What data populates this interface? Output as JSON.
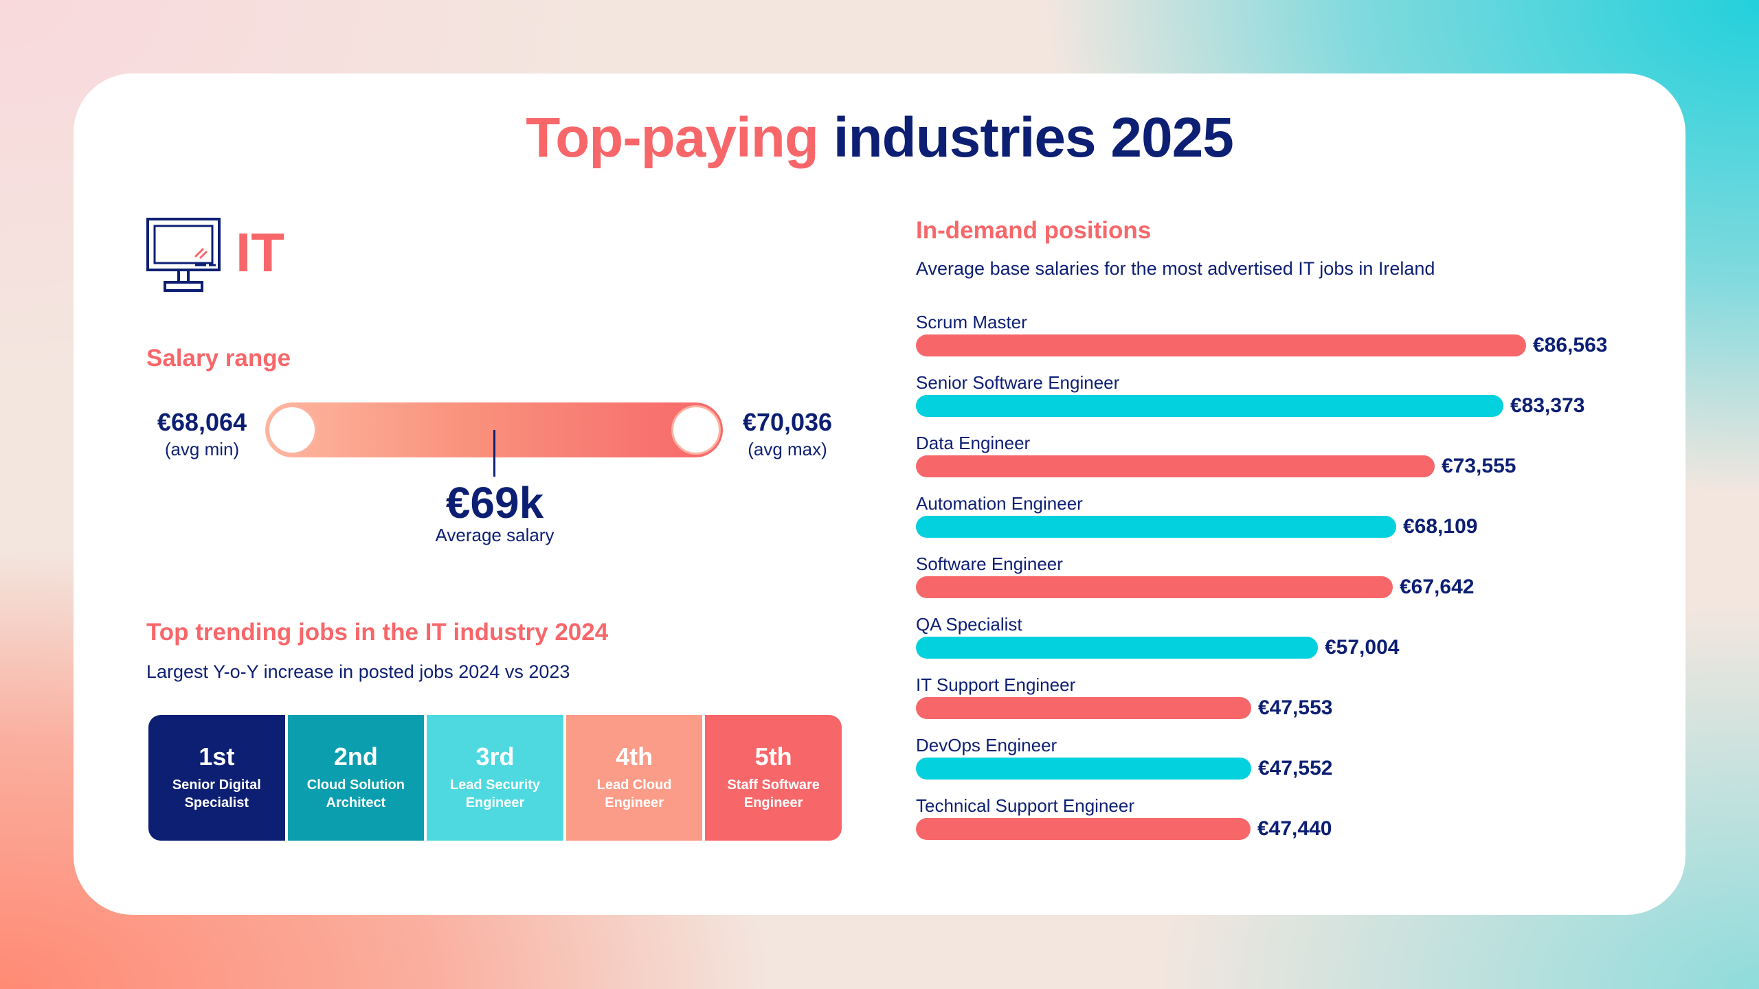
{
  "title": {
    "highlight": "Top-paying",
    "rest": "industries 2025"
  },
  "industry": {
    "name": "IT",
    "icon": "computer-monitor-icon"
  },
  "salary_range": {
    "heading": "Salary range",
    "min_value": "€68,064",
    "min_label": "(avg min)",
    "max_value": "€70,036",
    "max_label": "(avg max)",
    "average_value": "€69k",
    "average_label": "Average salary"
  },
  "trending": {
    "heading": "Top trending jobs in the IT industry 2024",
    "subheading": "Largest Y-o-Y increase in posted jobs 2024 vs 2023",
    "items": [
      {
        "rank": "1st",
        "job": "Senior Digital Specialist",
        "color": "#0d1f73"
      },
      {
        "rank": "2nd",
        "job": "Cloud Solution Architect",
        "color": "#0a9eae"
      },
      {
        "rank": "3rd",
        "job": "Lead Security Engineer",
        "color": "#4ed9e0"
      },
      {
        "rank": "4th",
        "job": "Lead Cloud Engineer",
        "color": "#fb9c88"
      },
      {
        "rank": "5th",
        "job": "Staff Software Engineer",
        "color": "#f7676a"
      }
    ]
  },
  "positions": {
    "heading": "In-demand positions",
    "subheading": "Average base salaries for the most advertised IT jobs in Ireland"
  },
  "colors": {
    "coral": "#f7676a",
    "cyan": "#04d1de",
    "navy": "#0d1f73"
  },
  "chart_data": {
    "type": "bar",
    "orientation": "horizontal",
    "title": "In-demand positions",
    "subtitle": "Average base salaries for the most advertised IT jobs in Ireland",
    "categories": [
      "Scrum Master",
      "Senior Software Engineer",
      "Data Engineer",
      "Automation Engineer",
      "Software Engineer",
      "QA Specialist",
      "IT Support Engineer",
      "DevOps Engineer",
      "Technical Support Engineer"
    ],
    "values": [
      86563,
      83373,
      73555,
      68109,
      67642,
      57004,
      47553,
      47552,
      47440
    ],
    "value_labels": [
      "€86,563",
      "€83,373",
      "€73,555",
      "€68,109",
      "€67,642",
      "€57,004",
      "€47,553",
      "€47,552",
      "€47,440"
    ],
    "bar_colors": [
      "#f7676a",
      "#04d1de",
      "#f7676a",
      "#04d1de",
      "#f7676a",
      "#04d1de",
      "#f7676a",
      "#04d1de",
      "#f7676a"
    ],
    "xlim": [
      0,
      86563
    ],
    "grid": false,
    "legend": "none"
  }
}
